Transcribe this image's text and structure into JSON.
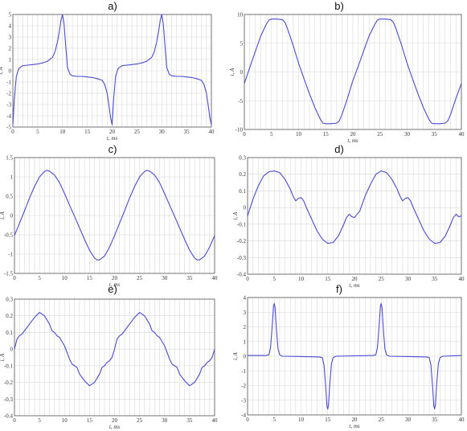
{
  "chart_data": [
    {
      "type": "line",
      "title": "a)",
      "xlabel": "t, ms",
      "ylabel": "i, A",
      "xlim": [
        0,
        40
      ],
      "ylim": [
        -5,
        5
      ],
      "xticks": [
        0,
        5,
        10,
        15,
        20,
        25,
        30,
        35,
        40
      ],
      "yticks": [
        -5,
        -4,
        -3,
        -2,
        -1,
        0,
        1,
        2,
        3,
        4,
        5
      ],
      "grid": true,
      "series": [
        {
          "color": "#4a4ad6",
          "x": [
            0,
            0.3,
            0.7,
            1.2,
            2,
            3,
            4,
            5,
            6,
            7,
            8,
            8.5,
            9,
            9.4,
            9.7,
            10,
            10.3,
            10.6,
            11,
            11.5,
            12,
            13,
            14,
            15,
            16,
            17,
            18,
            18.5,
            19,
            19.4,
            19.7,
            20,
            20.3,
            20.7,
            21.2,
            22,
            23,
            24,
            25,
            26,
            27,
            28,
            28.5,
            29,
            29.4,
            29.7,
            30,
            30.3,
            30.6,
            31,
            31.5,
            32,
            33,
            34,
            35,
            36,
            37,
            38,
            38.5,
            39,
            39.4,
            39.7,
            40
          ],
          "y": [
            -4.8,
            -2.5,
            -0.5,
            0.2,
            0.45,
            0.5,
            0.55,
            0.6,
            0.7,
            0.85,
            1.2,
            1.7,
            2.6,
            3.6,
            4.5,
            5.0,
            4.2,
            2.5,
            0.3,
            -0.3,
            -0.45,
            -0.5,
            -0.5,
            -0.55,
            -0.6,
            -0.7,
            -0.85,
            -1.2,
            -2.0,
            -3.2,
            -4.2,
            -4.8,
            -2.5,
            -0.5,
            0.2,
            0.45,
            0.5,
            0.55,
            0.6,
            0.7,
            0.85,
            1.2,
            1.7,
            2.6,
            3.6,
            4.5,
            5.0,
            4.2,
            2.5,
            0.3,
            -0.3,
            -0.45,
            -0.5,
            -0.5,
            -0.55,
            -0.6,
            -0.7,
            -0.85,
            -1.2,
            -2.0,
            -3.2,
            -4.2,
            -4.8
          ]
        }
      ]
    },
    {
      "type": "line",
      "title": "b)",
      "xlabel": "t, ms",
      "ylabel": "i, A",
      "xlim": [
        0,
        40
      ],
      "ylim": [
        -10,
        10
      ],
      "xticks": [
        0,
        5,
        10,
        15,
        20,
        25,
        30,
        35,
        40
      ],
      "yticks": [
        -10,
        -5,
        0,
        5,
        10
      ],
      "grid": true,
      "series": [
        {
          "color": "#4a4ad6",
          "x": [
            0,
            1,
            2,
            3,
            4,
            4.5,
            5,
            6,
            7,
            7.5,
            8,
            9,
            10,
            11,
            12,
            13,
            14,
            14.5,
            15,
            16,
            17,
            17.5,
            18,
            19,
            20,
            21,
            22,
            23,
            24,
            24.5,
            25,
            26,
            27,
            27.5,
            28,
            29,
            30,
            31,
            32,
            33,
            34,
            34.5,
            35,
            36,
            37,
            37.5,
            38,
            39,
            40
          ],
          "y": [
            -2,
            0.8,
            3.5,
            6.2,
            8.2,
            9,
            9.2,
            9.2,
            9.1,
            8.6,
            7.4,
            4.6,
            1.5,
            -1.2,
            -3.8,
            -6.2,
            -8.2,
            -8.9,
            -9.0,
            -9.0,
            -8.9,
            -8.5,
            -7.4,
            -4.6,
            -1.5,
            1.0,
            3.7,
            6.3,
            8.2,
            9.0,
            9.2,
            9.2,
            9.1,
            8.6,
            7.4,
            4.6,
            1.5,
            -1.2,
            -3.8,
            -6.2,
            -8.2,
            -8.9,
            -9.0,
            -9.0,
            -8.9,
            -8.5,
            -7.4,
            -4.6,
            -2.0
          ]
        }
      ]
    },
    {
      "type": "line",
      "title": "c)",
      "xlabel": "t, ms",
      "ylabel": "i, A",
      "xlim": [
        0,
        40
      ],
      "ylim": [
        -1.5,
        1.5
      ],
      "xticks": [
        0,
        5,
        10,
        15,
        20,
        25,
        30,
        35,
        40
      ],
      "yticks": [
        -1.5,
        -1,
        -0.5,
        0,
        0.5,
        1,
        1.5
      ],
      "grid": true,
      "series": [
        {
          "color": "#4a4ad6",
          "x": [
            0,
            1,
            2,
            3,
            4,
            5,
            6,
            6.5,
            7,
            8,
            9,
            10,
            11,
            12,
            13,
            14,
            15,
            16,
            16.5,
            17,
            18,
            19,
            20,
            21,
            22,
            23,
            24,
            25,
            26,
            26.5,
            27,
            28,
            29,
            30,
            31,
            32,
            33,
            34,
            35,
            36,
            36.5,
            37,
            38,
            39,
            40
          ],
          "y": [
            -0.52,
            -0.2,
            0.12,
            0.45,
            0.75,
            1.0,
            1.14,
            1.17,
            1.15,
            1.05,
            0.85,
            0.57,
            0.27,
            -0.02,
            -0.32,
            -0.62,
            -0.9,
            -1.1,
            -1.15,
            -1.15,
            -1.05,
            -0.82,
            -0.52,
            -0.2,
            0.12,
            0.45,
            0.75,
            1.0,
            1.14,
            1.17,
            1.15,
            1.05,
            0.85,
            0.57,
            0.27,
            -0.02,
            -0.32,
            -0.62,
            -0.9,
            -1.1,
            -1.15,
            -1.15,
            -1.05,
            -0.82,
            -0.52
          ]
        }
      ]
    },
    {
      "type": "line",
      "title": "d)",
      "xlabel": "t, ms",
      "ylabel": "i, A",
      "xlim": [
        0,
        40
      ],
      "ylim": [
        -0.4,
        0.3
      ],
      "xticks": [
        0,
        5,
        10,
        15,
        20,
        25,
        30,
        35,
        40
      ],
      "yticks": [
        -0.4,
        -0.3,
        -0.2,
        -0.1,
        0,
        0.1,
        0.2,
        0.3
      ],
      "grid": true,
      "series": [
        {
          "color": "#4a4ad6",
          "x": [
            0,
            1,
            2,
            3,
            4,
            5,
            6,
            7,
            8,
            8.5,
            9,
            9.5,
            10,
            10.5,
            11,
            12,
            13,
            14,
            15,
            16,
            17,
            18,
            18.5,
            19,
            19.5,
            20,
            21,
            22,
            23,
            24,
            25,
            26,
            27,
            28,
            28.5,
            29,
            29.5,
            30,
            30.5,
            31,
            32,
            33,
            34,
            35,
            36,
            37,
            38,
            38.5,
            39,
            39.5,
            40
          ],
          "y": [
            -0.05,
            0.05,
            0.13,
            0.19,
            0.215,
            0.22,
            0.21,
            0.17,
            0.11,
            0.07,
            0.04,
            0.055,
            0.06,
            0.04,
            0.0,
            -0.07,
            -0.14,
            -0.19,
            -0.215,
            -0.21,
            -0.17,
            -0.1,
            -0.06,
            -0.04,
            -0.055,
            -0.06,
            -0.02,
            0.07,
            0.14,
            0.2,
            0.22,
            0.21,
            0.17,
            0.11,
            0.07,
            0.04,
            0.055,
            0.06,
            0.04,
            0.0,
            -0.07,
            -0.14,
            -0.19,
            -0.215,
            -0.21,
            -0.17,
            -0.1,
            -0.06,
            -0.04,
            -0.055,
            -0.05
          ]
        }
      ]
    },
    {
      "type": "line",
      "title": "e)",
      "xlabel": "t, ms",
      "ylabel": "i, A",
      "xlim": [
        0,
        40
      ],
      "ylim": [
        -0.4,
        0.3
      ],
      "xticks": [
        0,
        5,
        10,
        15,
        20,
        25,
        30,
        35,
        40
      ],
      "yticks": [
        -0.4,
        -0.3,
        -0.2,
        -0.1,
        0,
        0.1,
        0.2,
        0.3
      ],
      "grid": true,
      "series": [
        {
          "color": "#4a4ad6",
          "x": [
            0,
            0.5,
            1,
            1.5,
            2,
            3,
            4,
            5,
            6,
            7,
            7.5,
            8,
            8.5,
            9,
            10,
            11,
            11.5,
            12,
            12.5,
            13,
            14,
            15,
            16,
            17,
            17.5,
            18,
            18.5,
            19,
            19.5,
            20,
            20.5,
            21,
            21.5,
            22,
            23,
            24,
            25,
            26,
            27,
            27.5,
            28,
            28.5,
            29,
            30,
            31,
            31.5,
            32,
            32.5,
            33,
            34,
            35,
            36,
            37,
            37.5,
            38,
            38.5,
            39,
            39.5,
            40
          ],
          "y": [
            0.0,
            0.06,
            0.08,
            0.09,
            0.11,
            0.15,
            0.19,
            0.22,
            0.2,
            0.15,
            0.11,
            0.1,
            0.08,
            0.07,
            0.02,
            -0.06,
            -0.09,
            -0.1,
            -0.11,
            -0.15,
            -0.19,
            -0.22,
            -0.2,
            -0.15,
            -0.11,
            -0.1,
            -0.08,
            -0.07,
            -0.05,
            0.0,
            0.06,
            0.08,
            0.09,
            0.11,
            0.15,
            0.19,
            0.22,
            0.2,
            0.15,
            0.11,
            0.1,
            0.08,
            0.07,
            0.02,
            -0.06,
            -0.09,
            -0.1,
            -0.11,
            -0.15,
            -0.19,
            -0.22,
            -0.2,
            -0.15,
            -0.11,
            -0.1,
            -0.08,
            -0.07,
            -0.05,
            0.0
          ]
        }
      ]
    },
    {
      "type": "line",
      "title": "f)",
      "xlabel": "t, ms",
      "ylabel": "i, A",
      "xlim": [
        0,
        40
      ],
      "ylim": [
        -4,
        4
      ],
      "xticks": [
        0,
        5,
        10,
        15,
        20,
        25,
        30,
        35,
        40
      ],
      "yticks": [
        -4,
        -3,
        -2,
        -1,
        0,
        1,
        2,
        3,
        4
      ],
      "grid": true,
      "series": [
        {
          "color": "#4a4ad6",
          "x": [
            0,
            3.5,
            4,
            4.3,
            4.6,
            4.85,
            5,
            5.15,
            5.4,
            5.7,
            6,
            6.5,
            13.5,
            14,
            14.3,
            14.6,
            14.85,
            15,
            15.15,
            15.4,
            15.7,
            16,
            16.5,
            23.5,
            24,
            24.3,
            24.6,
            24.85,
            25,
            25.15,
            25.4,
            25.7,
            26,
            26.5,
            33.5,
            34,
            34.3,
            34.6,
            34.85,
            35,
            35.15,
            35.4,
            35.7,
            36,
            36.5,
            40
          ],
          "y": [
            0.05,
            0.05,
            0.1,
            0.6,
            2.0,
            3.4,
            3.6,
            3.3,
            1.8,
            0.5,
            0.1,
            0.0,
            -0.05,
            -0.1,
            -0.6,
            -2.0,
            -3.4,
            -3.6,
            -3.3,
            -1.8,
            -0.5,
            -0.1,
            0.0,
            0.05,
            0.1,
            0.6,
            2.0,
            3.4,
            3.6,
            3.3,
            1.8,
            0.5,
            0.1,
            0.0,
            -0.05,
            -0.1,
            -0.6,
            -2.0,
            -3.4,
            -3.6,
            -3.3,
            -1.8,
            -0.5,
            -0.1,
            0.0,
            0.05
          ]
        }
      ]
    }
  ]
}
